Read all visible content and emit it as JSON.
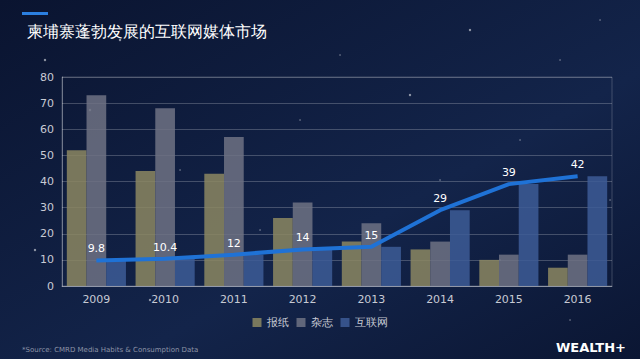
{
  "chart_data": {
    "type": "bar",
    "title": "柬埔寨蓬勃发展的互联网媒体市场",
    "source": "*Source: CMRD Media Habits & Consumption Data",
    "logo": "WEALTH+",
    "categories": [
      "2009",
      "2010",
      "2011",
      "2012",
      "2013",
      "2014",
      "2015",
      "2016"
    ],
    "series": [
      {
        "name": "报纸",
        "type": "bar",
        "color": "#8c8762",
        "values": [
          52,
          44,
          43,
          26,
          17,
          14,
          10,
          7
        ]
      },
      {
        "name": "杂志",
        "type": "bar",
        "color": "#6f7284",
        "values": [
          73,
          68,
          57,
          32,
          24,
          17,
          12,
          12
        ]
      },
      {
        "name": "互联网",
        "type": "bar",
        "color": "#3d5c96",
        "values": [
          9.8,
          10.4,
          12,
          14,
          15,
          29,
          39,
          42
        ]
      },
      {
        "type": "line",
        "color": "#1f72d6",
        "values": [
          9.8,
          10.4,
          12,
          14,
          15,
          29,
          39,
          42
        ],
        "data_labels": true
      }
    ],
    "ylim": [
      0,
      80
    ],
    "yticks": [
      0,
      10,
      20,
      30,
      40,
      50,
      60,
      70,
      80
    ],
    "grid": true,
    "legend": "bottom"
  }
}
